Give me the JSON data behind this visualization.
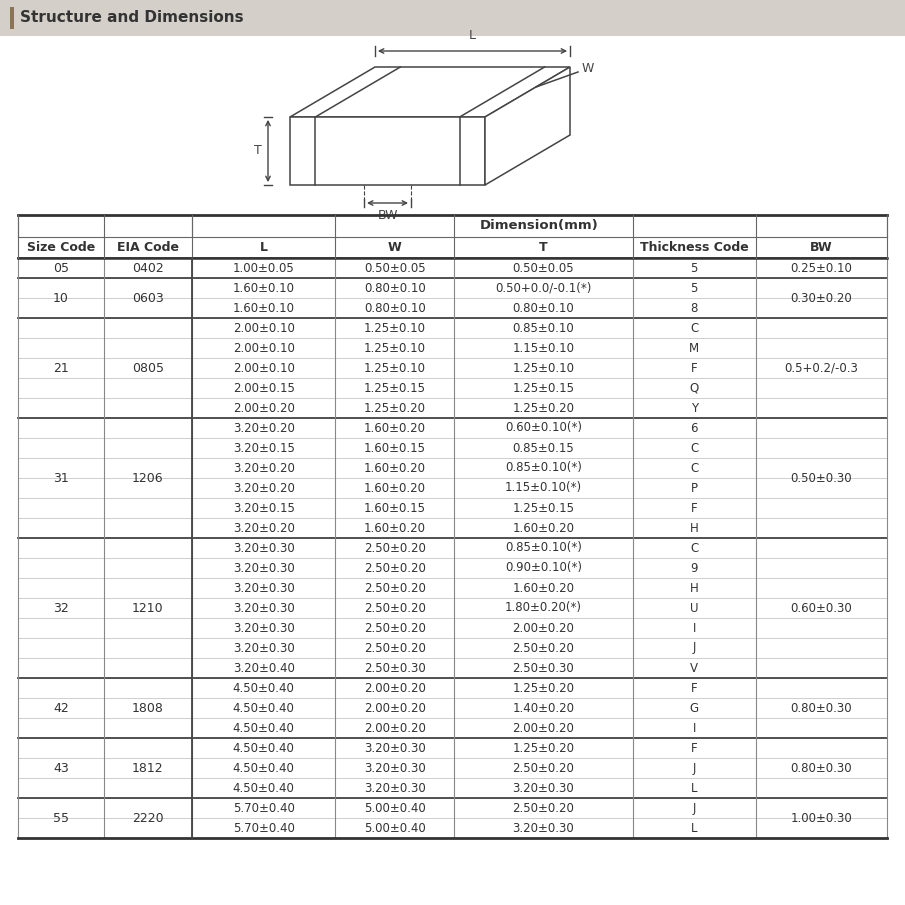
{
  "title": "Structure and Dimensions",
  "title_bar_color": "#d4cfc8",
  "title_accent_color": "#8B7355",
  "col_headers_row2": [
    "Size Code",
    "EIA Code",
    "L",
    "W",
    "T",
    "Thickness Code",
    "BW"
  ],
  "rows": [
    [
      "05",
      "0402",
      "1.00±0.05",
      "0.50±0.05",
      "0.50±0.05",
      "5",
      "0.25±0.10"
    ],
    [
      "10",
      "0603",
      "1.60±0.10",
      "0.80±0.10",
      "0.50+0.0/-0.1(*)",
      "5",
      "0.30±0.20"
    ],
    [
      "",
      "",
      "1.60±0.10",
      "0.80±0.10",
      "0.80±0.10",
      "8",
      ""
    ],
    [
      "21",
      "0805",
      "2.00±0.10",
      "1.25±0.10",
      "0.85±0.10",
      "C",
      "0.5+0.2/-0.3"
    ],
    [
      "",
      "",
      "2.00±0.10",
      "1.25±0.10",
      "1.15±0.10",
      "M",
      ""
    ],
    [
      "",
      "",
      "2.00±0.10",
      "1.25±0.10",
      "1.25±0.10",
      "F",
      ""
    ],
    [
      "",
      "",
      "2.00±0.15",
      "1.25±0.15",
      "1.25±0.15",
      "Q",
      ""
    ],
    [
      "",
      "",
      "2.00±0.20",
      "1.25±0.20",
      "1.25±0.20",
      "Y",
      ""
    ],
    [
      "31",
      "1206",
      "3.20±0.20",
      "1.60±0.20",
      "0.60±0.10(*)",
      "6",
      "0.50±0.30"
    ],
    [
      "",
      "",
      "3.20±0.15",
      "1.60±0.15",
      "0.85±0.15",
      "C",
      ""
    ],
    [
      "",
      "",
      "3.20±0.20",
      "1.60±0.20",
      "0.85±0.10(*)",
      "C",
      ""
    ],
    [
      "",
      "",
      "3.20±0.20",
      "1.60±0.20",
      "1.15±0.10(*)",
      "P",
      ""
    ],
    [
      "",
      "",
      "3.20±0.15",
      "1.60±0.15",
      "1.25±0.15",
      "F",
      ""
    ],
    [
      "",
      "",
      "3.20±0.20",
      "1.60±0.20",
      "1.60±0.20",
      "H",
      ""
    ],
    [
      "32",
      "1210",
      "3.20±0.30",
      "2.50±0.20",
      "0.85±0.10(*)",
      "C",
      "0.60±0.30"
    ],
    [
      "",
      "",
      "3.20±0.30",
      "2.50±0.20",
      "0.90±0.10(*)",
      "9",
      ""
    ],
    [
      "",
      "",
      "3.20±0.30",
      "2.50±0.20",
      "1.60±0.20",
      "H",
      ""
    ],
    [
      "",
      "",
      "3.20±0.30",
      "2.50±0.20",
      "1.80±0.20(*)",
      "U",
      ""
    ],
    [
      "",
      "",
      "3.20±0.30",
      "2.50±0.20",
      "2.00±0.20",
      "I",
      ""
    ],
    [
      "",
      "",
      "3.20±0.30",
      "2.50±0.20",
      "2.50±0.20",
      "J",
      ""
    ],
    [
      "",
      "",
      "3.20±0.40",
      "2.50±0.30",
      "2.50±0.30",
      "V",
      ""
    ],
    [
      "42",
      "1808",
      "4.50±0.40",
      "2.00±0.20",
      "1.25±0.20",
      "F",
      "0.80±0.30"
    ],
    [
      "",
      "",
      "4.50±0.40",
      "2.00±0.20",
      "1.40±0.20",
      "G",
      ""
    ],
    [
      "",
      "",
      "4.50±0.40",
      "2.00±0.20",
      "2.00±0.20",
      "I",
      ""
    ],
    [
      "43",
      "1812",
      "4.50±0.40",
      "3.20±0.30",
      "1.25±0.20",
      "F",
      "0.80±0.30"
    ],
    [
      "",
      "",
      "4.50±0.40",
      "3.20±0.30",
      "2.50±0.20",
      "J",
      ""
    ],
    [
      "",
      "",
      "4.50±0.40",
      "3.20±0.30",
      "3.20±0.30",
      "L",
      ""
    ],
    [
      "55",
      "2220",
      "5.70±0.40",
      "5.00±0.40",
      "2.50±0.20",
      "J",
      "1.00±0.30"
    ],
    [
      "",
      "",
      "5.70±0.40",
      "5.00±0.40",
      "3.20±0.30",
      "L",
      ""
    ]
  ],
  "group_spans": [
    {
      "label": "05",
      "eia": "0402",
      "start": 0,
      "end": 0
    },
    {
      "label": "10",
      "eia": "0603",
      "start": 1,
      "end": 2
    },
    {
      "label": "21",
      "eia": "0805",
      "start": 3,
      "end": 7
    },
    {
      "label": "31",
      "eia": "1206",
      "start": 8,
      "end": 13
    },
    {
      "label": "32",
      "eia": "1210",
      "start": 14,
      "end": 20
    },
    {
      "label": "42",
      "eia": "1808",
      "start": 21,
      "end": 23
    },
    {
      "label": "43",
      "eia": "1812",
      "start": 24,
      "end": 26
    },
    {
      "label": "55",
      "eia": "2220",
      "start": 27,
      "end": 28
    }
  ],
  "bw_spans": [
    {
      "value": "0.25±0.10",
      "start": 0,
      "end": 0
    },
    {
      "value": "0.30±0.20",
      "start": 1,
      "end": 2
    },
    {
      "value": "0.5+0.2/-0.3",
      "start": 3,
      "end": 7
    },
    {
      "value": "0.50±0.30",
      "start": 8,
      "end": 13
    },
    {
      "value": "0.60±0.30",
      "start": 14,
      "end": 20
    },
    {
      "value": "0.80±0.30",
      "start": 21,
      "end": 23
    },
    {
      "value": "0.80±0.30",
      "start": 24,
      "end": 26
    },
    {
      "value": "1.00±0.30",
      "start": 27,
      "end": 28
    }
  ]
}
